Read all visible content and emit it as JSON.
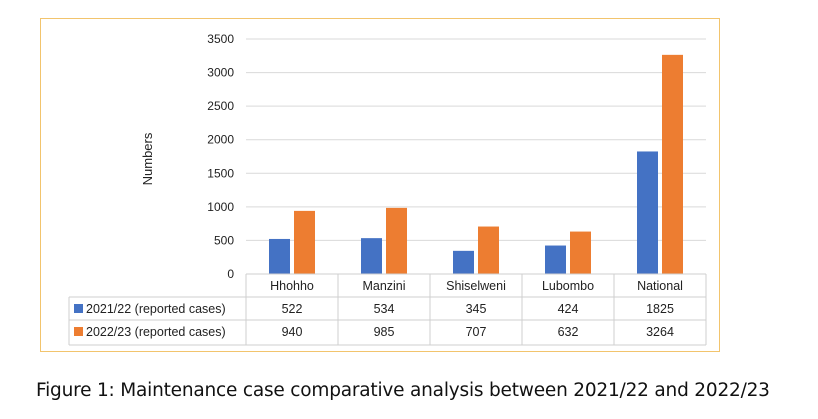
{
  "chart_data": {
    "type": "bar",
    "categories": [
      "Hhohho",
      "Manzini",
      "Shiselweni",
      "Lubombo",
      "National"
    ],
    "series": [
      {
        "name": "2021/22 (reported cases)",
        "values": [
          522,
          534,
          345,
          424,
          1825
        ],
        "color": "#4472c4"
      },
      {
        "name": "2022/23 (reported cases)",
        "values": [
          940,
          985,
          707,
          632,
          3264
        ],
        "color": "#ed7d31"
      }
    ],
    "ylabel": "Numbers",
    "ylim": [
      0,
      3500
    ],
    "yticks": [
      0,
      500,
      1000,
      1500,
      2000,
      2500,
      3000,
      3500
    ],
    "grid": true,
    "legend": "data-table"
  },
  "caption": "Figure 1: Maintenance case comparative analysis between 2021/22 and 2022/23"
}
